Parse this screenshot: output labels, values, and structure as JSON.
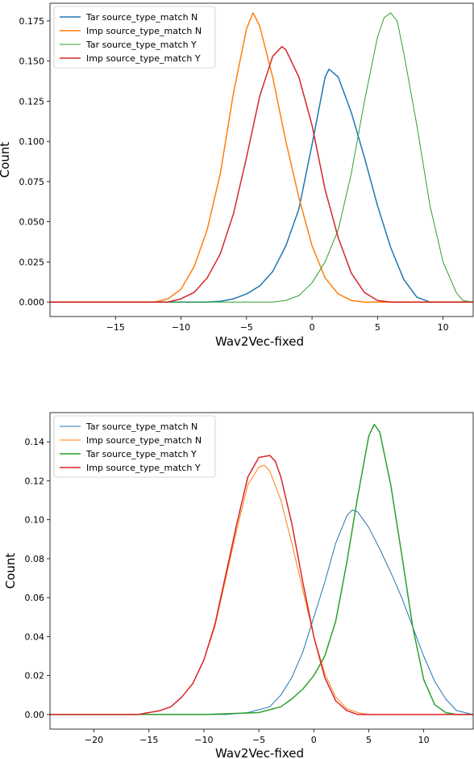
{
  "chart_data": [
    {
      "type": "line",
      "title": "",
      "xlabel": "Wav2Vec-fixed",
      "ylabel": "Count",
      "xlim": [
        -20,
        12.3
      ],
      "ylim": [
        -0.009,
        0.186
      ],
      "xticks": [
        -15,
        -10,
        -5,
        0,
        5,
        10
      ],
      "yticks": [
        0.0,
        0.025,
        0.05,
        0.075,
        0.1,
        0.125,
        0.15,
        0.175
      ],
      "ytick_labels": [
        "0.000",
        "0.025",
        "0.050",
        "0.075",
        "0.100",
        "0.125",
        "0.150",
        "0.175"
      ],
      "grid": false,
      "legend": "top-left",
      "series": [
        {
          "name": "Tar source_type_match N",
          "color": "#1f77b4",
          "width": 1.5,
          "x": [
            -20,
            -8,
            -7,
            -6,
            -5,
            -4,
            -3,
            -2,
            -1,
            0,
            1,
            1.3,
            2,
            3,
            4,
            5,
            6,
            7,
            8,
            9,
            12.3
          ],
          "y": [
            0,
            0,
            0.0005,
            0.002,
            0.005,
            0.01,
            0.019,
            0.035,
            0.058,
            0.098,
            0.14,
            0.145,
            0.14,
            0.118,
            0.09,
            0.06,
            0.034,
            0.014,
            0.003,
            0,
            0
          ]
        },
        {
          "name": "Imp source_type_match N",
          "color": "#ff7f0e",
          "width": 1.5,
          "x": [
            -20,
            -12,
            -11,
            -10,
            -9,
            -8,
            -7,
            -6,
            -5,
            -4.5,
            -4,
            -3,
            -2,
            -1,
            0,
            1,
            2,
            3,
            4,
            12.3
          ],
          "y": [
            0,
            0,
            0.002,
            0.008,
            0.022,
            0.045,
            0.08,
            0.13,
            0.17,
            0.18,
            0.172,
            0.14,
            0.1,
            0.065,
            0.035,
            0.015,
            0.005,
            0.001,
            0,
            0
          ]
        },
        {
          "name": "Tar source_type_match Y",
          "color": "#2ca02c",
          "width": 1.0,
          "x": [
            -20,
            -3,
            -2,
            -1,
            0,
            1,
            2,
            3,
            4,
            5,
            5.5,
            6,
            6.5,
            7,
            8,
            9,
            10,
            11,
            11.5,
            12.3
          ],
          "y": [
            0,
            0,
            0.001,
            0.004,
            0.012,
            0.025,
            0.045,
            0.08,
            0.125,
            0.165,
            0.177,
            0.18,
            0.175,
            0.155,
            0.11,
            0.06,
            0.025,
            0.006,
            0.001,
            0
          ]
        },
        {
          "name": "Imp source_type_match Y",
          "color": "#d62728",
          "width": 1.5,
          "x": [
            -20,
            -11,
            -10,
            -9,
            -8,
            -7,
            -6,
            -5,
            -4,
            -3,
            -2.3,
            -2,
            -1,
            0,
            1,
            2,
            3,
            4,
            5,
            6,
            12.3
          ],
          "y": [
            0,
            0,
            0.002,
            0.006,
            0.015,
            0.03,
            0.055,
            0.09,
            0.128,
            0.153,
            0.159,
            0.157,
            0.14,
            0.11,
            0.07,
            0.04,
            0.018,
            0.006,
            0.001,
            0,
            0
          ]
        }
      ]
    },
    {
      "type": "line",
      "title": "",
      "xlabel": "Wav2Vec-fixed",
      "ylabel": "Count",
      "xlim": [
        -24,
        14.5
      ],
      "ylim": [
        -0.0075,
        0.155
      ],
      "xticks": [
        -20,
        -15,
        -10,
        -5,
        0,
        5,
        10
      ],
      "yticks": [
        0.0,
        0.02,
        0.04,
        0.06,
        0.08,
        0.1,
        0.12,
        0.14
      ],
      "ytick_labels": [
        "0.00",
        "0.02",
        "0.04",
        "0.06",
        "0.08",
        "0.10",
        "0.12",
        "0.14"
      ],
      "grid": false,
      "legend": "top-left",
      "series": [
        {
          "name": "Tar source_type_match N",
          "color": "#1f77b4",
          "width": 1.0,
          "x": [
            -24,
            -8,
            -6,
            -4,
            -3,
            -2,
            -1,
            0,
            1,
            2,
            3,
            3.5,
            4,
            5,
            6,
            7,
            8,
            9,
            10,
            11,
            12,
            13,
            14.5
          ],
          "y": [
            0,
            0,
            0.001,
            0.004,
            0.01,
            0.019,
            0.032,
            0.05,
            0.068,
            0.088,
            0.102,
            0.105,
            0.104,
            0.096,
            0.085,
            0.073,
            0.06,
            0.045,
            0.03,
            0.017,
            0.008,
            0.002,
            0
          ]
        },
        {
          "name": "Imp source_type_match N",
          "color": "#ff7f0e",
          "width": 1.0,
          "x": [
            -24,
            -16,
            -14,
            -13,
            -12,
            -11,
            -10,
            -9,
            -8,
            -7,
            -6,
            -5,
            -4.5,
            -4,
            -3,
            -2,
            -1,
            0,
            1,
            2,
            3,
            4,
            5,
            14.5
          ],
          "y": [
            0,
            0,
            0.002,
            0.004,
            0.009,
            0.016,
            0.028,
            0.045,
            0.07,
            0.095,
            0.118,
            0.127,
            0.128,
            0.125,
            0.11,
            0.088,
            0.064,
            0.04,
            0.021,
            0.009,
            0.003,
            0.001,
            0,
            0
          ]
        },
        {
          "name": "Tar source_type_match Y",
          "color": "#2ca02c",
          "width": 1.5,
          "x": [
            -24,
            -10,
            -5,
            -3,
            -2,
            -1,
            0,
            1,
            2,
            3,
            4,
            5,
            5.5,
            6,
            7,
            8,
            9,
            10,
            11,
            12,
            13,
            14.5
          ],
          "y": [
            0,
            0,
            0.001,
            0.004,
            0.008,
            0.013,
            0.02,
            0.03,
            0.048,
            0.078,
            0.112,
            0.143,
            0.149,
            0.145,
            0.118,
            0.082,
            0.045,
            0.018,
            0.005,
            0.001,
            0,
            0
          ]
        },
        {
          "name": "Imp source_type_match Y",
          "color": "#d62728",
          "width": 1.5,
          "x": [
            -24,
            -16,
            -14,
            -13,
            -12,
            -11,
            -10,
            -9,
            -8,
            -7,
            -6,
            -5,
            -4,
            -3.5,
            -3,
            -2,
            -1,
            0,
            1,
            2,
            3,
            4,
            5,
            14.5
          ],
          "y": [
            0,
            0,
            0.002,
            0.004,
            0.009,
            0.016,
            0.028,
            0.046,
            0.072,
            0.098,
            0.122,
            0.132,
            0.133,
            0.13,
            0.122,
            0.098,
            0.068,
            0.04,
            0.019,
            0.007,
            0.002,
            0,
            0,
            0
          ]
        }
      ]
    }
  ]
}
